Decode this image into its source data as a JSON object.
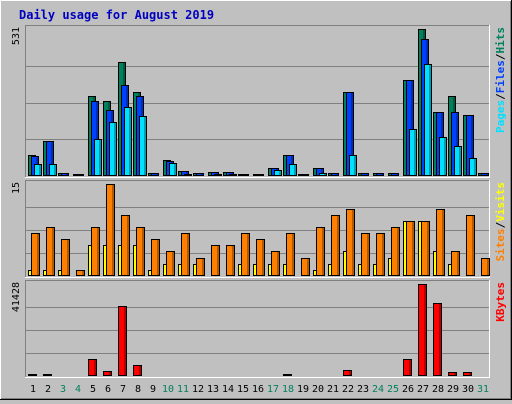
{
  "chart_data": {
    "type": "bar",
    "title": "Daily usage for August 2019",
    "categories": [
      "1",
      "2",
      "3",
      "4",
      "5",
      "6",
      "7",
      "8",
      "9",
      "10",
      "11",
      "12",
      "13",
      "14",
      "15",
      "16",
      "17",
      "18",
      "19",
      "20",
      "21",
      "22",
      "23",
      "24",
      "25",
      "26",
      "27",
      "28",
      "29",
      "30",
      "31"
    ],
    "weekend_days": [
      "3",
      "4",
      "10",
      "11",
      "17",
      "18",
      "24",
      "25",
      "31"
    ],
    "colors": {
      "background": "#c0c0c0",
      "plot_background": "#c0c0c0",
      "title": "#0000c0",
      "hits": "#00805c",
      "files": "#0040ff",
      "pages": "#00e0ff",
      "visits": "#ffff00",
      "sites": "#ff8000",
      "kbytes": "#ff0000",
      "weekday_label": "#000000",
      "weekend_label": "#00805c",
      "separator": "#000000"
    },
    "panels": [
      {
        "id": "requests",
        "max_label": "531",
        "ylim": [
          0,
          531
        ],
        "legend": [
          "Pages",
          "/",
          "Files",
          "/",
          "Hits"
        ],
        "legend_colors": [
          "pages",
          "separator",
          "files",
          "separator",
          "hits"
        ],
        "series": [
          {
            "name": "Hits",
            "color_key": "hits",
            "values": [
              75,
              125,
              12,
              8,
              290,
              270,
              410,
              302,
              12,
              58,
              18,
              12,
              15,
              15,
              8,
              9,
              30,
              75,
              8,
              30,
              12,
              305,
              12,
              12,
              12,
              345,
              531,
              230,
              290,
              220,
              10
            ]
          },
          {
            "name": "Files",
            "color_key": "files",
            "values": [
              72,
              125,
              12,
              8,
              270,
              240,
              330,
              290,
              12,
              55,
              18,
              12,
              15,
              15,
              8,
              9,
              30,
              75,
              8,
              30,
              12,
              305,
              12,
              12,
              12,
              345,
              495,
              230,
              230,
              220,
              10
            ]
          },
          {
            "name": "Pages",
            "color_key": "pages",
            "values": [
              42,
              42,
              5,
              3,
              135,
              195,
              250,
              215,
              5,
              48,
              8,
              5,
              8,
              8,
              4,
              4,
              20,
              42,
              4,
              12,
              5,
              75,
              5,
              5,
              5,
              170,
              405,
              140,
              110,
              65,
              3
            ]
          }
        ]
      },
      {
        "id": "visitors",
        "max_label": "15",
        "ylim": [
          0,
          15
        ],
        "legend": [
          "Sites",
          "/",
          "Visits"
        ],
        "legend_colors": [
          "sites",
          "separator",
          "visits"
        ],
        "series": [
          {
            "name": "Visits",
            "color_key": "visits",
            "values": [
              1,
              1,
              1,
              0,
              5,
              5,
              5,
              5,
              1,
              2,
              2,
              2,
              0,
              0,
              2,
              2,
              2,
              2,
              0,
              1,
              2,
              4,
              2,
              2,
              3,
              9,
              9,
              4,
              2,
              0,
              0
            ]
          },
          {
            "name": "Sites",
            "color_key": "sites",
            "values": [
              7,
              8,
              6,
              1,
              8,
              15,
              10,
              8,
              6,
              4,
              7,
              3,
              5,
              5,
              7,
              6,
              4,
              7,
              3,
              8,
              10,
              11,
              7,
              7,
              8,
              9,
              9,
              11,
              4,
              10,
              3
            ]
          }
        ]
      },
      {
        "id": "kbytes",
        "max_label": "41428",
        "ylim": [
          0,
          41428
        ],
        "legend": [
          "KBytes"
        ],
        "legend_colors": [
          "kbytes"
        ],
        "series": [
          {
            "name": "KBytes",
            "color_key": "kbytes",
            "values": [
              800,
              800,
              300,
              300,
              7800,
              2200,
              31500,
              4900,
              300,
              300,
              300,
              300,
              300,
              300,
              300,
              300,
              300,
              1000,
              300,
              300,
              300,
              2700,
              300,
              300,
              300,
              7800,
              41428,
              33000,
              2000,
              2000,
              300
            ]
          }
        ]
      }
    ]
  }
}
